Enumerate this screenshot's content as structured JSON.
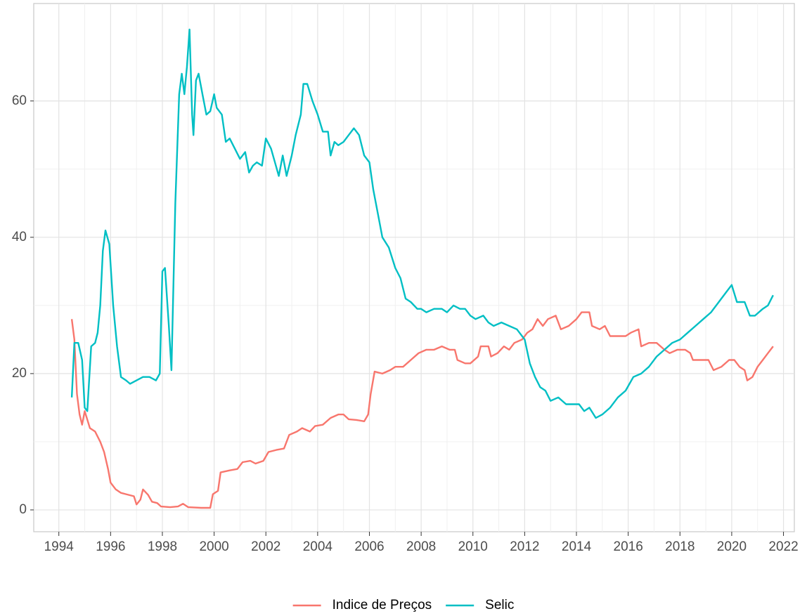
{
  "chart_data": {
    "type": "line",
    "xlim": [
      1993.03,
      2022.42
    ],
    "ylim": [
      -3.2,
      74.3
    ],
    "xticks": [
      1994,
      1996,
      1998,
      2000,
      2002,
      2004,
      2006,
      2008,
      2010,
      2012,
      2014,
      2016,
      2018,
      2020,
      2022
    ],
    "yticks": [
      0,
      20,
      40,
      60
    ],
    "grid": true,
    "legend": "bottom",
    "series": [
      {
        "name": "Indice de Preços",
        "color": "#F8766D",
        "x": [
          1994.5,
          1994.6,
          1994.7,
          1994.8,
          1994.9,
          1995.0,
          1995.2,
          1995.4,
          1995.6,
          1995.75,
          1995.9,
          1996.0,
          1996.2,
          1996.4,
          1996.6,
          1996.9,
          1997.0,
          1997.15,
          1997.25,
          1997.45,
          1997.6,
          1997.8,
          1997.95,
          1998.3,
          1998.6,
          1998.8,
          1999.0,
          1999.5,
          1999.85,
          1999.95,
          2000.15,
          2000.25,
          2000.6,
          2000.9,
          2001.1,
          2001.4,
          2001.6,
          2001.9,
          2002.1,
          2002.4,
          2002.7,
          2002.9,
          2003.2,
          2003.4,
          2003.7,
          2003.9,
          2004.2,
          2004.5,
          2004.8,
          2005.0,
          2005.2,
          2005.5,
          2005.8,
          2005.95,
          2006.05,
          2006.2,
          2006.5,
          2006.8,
          2007.0,
          2007.3,
          2007.6,
          2007.9,
          2008.2,
          2008.5,
          2008.8,
          2009.1,
          2009.3,
          2009.4,
          2009.7,
          2009.9,
          2010.2,
          2010.3,
          2010.6,
          2010.7,
          2010.95,
          2011.2,
          2011.4,
          2011.6,
          2011.9,
          2012.1,
          2012.3,
          2012.5,
          2012.7,
          2012.9,
          2013.2,
          2013.4,
          2013.7,
          2014.0,
          2014.2,
          2014.5,
          2014.6,
          2014.9,
          2015.1,
          2015.3,
          2015.6,
          2015.9,
          2016.1,
          2016.4,
          2016.5,
          2016.8,
          2017.1,
          2017.4,
          2017.6,
          2017.9,
          2018.2,
          2018.4,
          2018.5,
          2018.8,
          2019.1,
          2019.3,
          2019.6,
          2019.9,
          2020.1,
          2020.3,
          2020.5,
          2020.6,
          2020.8,
          2021.0,
          2021.2,
          2021.4,
          2021.6
        ],
        "values": [
          28,
          25,
          17,
          14,
          12.5,
          14.5,
          12,
          11.5,
          10,
          8.5,
          6,
          4,
          3,
          2.5,
          2.3,
          2,
          0.8,
          1.5,
          3,
          2.2,
          1.2,
          1,
          0.5,
          0.4,
          0.5,
          0.9,
          0.4,
          0.3,
          0.3,
          2.3,
          2.8,
          5.5,
          5.8,
          6,
          7,
          7.2,
          6.8,
          7.2,
          8.5,
          8.8,
          9,
          11,
          11.5,
          12,
          11.5,
          12.3,
          12.5,
          13.5,
          14,
          14,
          13.3,
          13.2,
          13,
          14,
          17,
          20.3,
          20,
          20.5,
          21,
          21,
          22,
          23,
          23.5,
          23.5,
          24,
          23.5,
          23.5,
          22,
          21.5,
          21.5,
          22.5,
          24,
          24,
          22.5,
          23,
          24,
          23.5,
          24.5,
          25,
          26,
          26.5,
          28,
          27,
          28,
          28.5,
          26.5,
          27,
          28,
          29,
          29,
          27,
          26.5,
          27,
          25.5,
          25.5,
          25.5,
          26,
          26.5,
          24,
          24.5,
          24.5,
          23.5,
          23,
          23.5,
          23.5,
          23,
          22,
          22,
          22,
          20.5,
          21,
          22,
          22,
          21,
          20.5,
          19,
          19.5,
          21,
          22,
          23,
          24
        ]
      },
      {
        "name": "Selic",
        "color": "#00BFC4",
        "x": [
          1994.5,
          1994.6,
          1994.75,
          1994.9,
          1995.0,
          1995.1,
          1995.25,
          1995.4,
          1995.5,
          1995.6,
          1995.7,
          1995.8,
          1995.95,
          1996.1,
          1996.25,
          1996.4,
          1996.6,
          1996.75,
          1997.0,
          1997.25,
          1997.5,
          1997.75,
          1997.9,
          1998.0,
          1998.1,
          1998.25,
          1998.35,
          1998.5,
          1998.65,
          1998.75,
          1998.85,
          1998.95,
          1999.05,
          1999.15,
          1999.2,
          1999.3,
          1999.4,
          1999.55,
          1999.7,
          1999.85,
          2000.0,
          2000.1,
          2000.3,
          2000.45,
          2000.6,
          2000.8,
          2001.0,
          2001.2,
          2001.35,
          2001.5,
          2001.65,
          2001.85,
          2002.0,
          2002.2,
          2002.35,
          2002.5,
          2002.65,
          2002.8,
          2003.0,
          2003.15,
          2003.35,
          2003.45,
          2003.6,
          2003.8,
          2004.0,
          2004.2,
          2004.4,
          2004.5,
          2004.65,
          2004.8,
          2005.0,
          2005.2,
          2005.4,
          2005.6,
          2005.8,
          2006.0,
          2006.15,
          2006.35,
          2006.5,
          2006.75,
          2007.0,
          2007.2,
          2007.4,
          2007.6,
          2007.85,
          2008.0,
          2008.2,
          2008.5,
          2008.8,
          2009.0,
          2009.25,
          2009.5,
          2009.7,
          2009.9,
          2010.1,
          2010.4,
          2010.6,
          2010.8,
          2011.1,
          2011.4,
          2011.7,
          2012.0,
          2012.2,
          2012.4,
          2012.6,
          2012.8,
          2013.0,
          2013.3,
          2013.6,
          2013.9,
          2014.1,
          2014.3,
          2014.5,
          2014.75,
          2015.0,
          2015.3,
          2015.6,
          2015.9,
          2016.2,
          2016.5,
          2016.8,
          2017.1,
          2017.4,
          2017.7,
          2018.0,
          2018.3,
          2018.6,
          2018.9,
          2019.2,
          2019.5,
          2019.8,
          2020.0,
          2020.2,
          2020.5,
          2020.7,
          2020.9,
          2021.2,
          2021.4,
          2021.6
        ],
        "values": [
          16.5,
          24.5,
          24.5,
          22,
          15,
          14.5,
          24,
          24.5,
          26,
          30,
          38,
          41,
          39,
          30,
          24,
          19.5,
          19,
          18.5,
          19,
          19.5,
          19.5,
          19,
          20,
          35,
          35.5,
          27,
          20.5,
          45,
          61,
          64,
          61,
          65,
          70.5,
          58,
          55,
          63,
          64,
          61,
          58,
          58.5,
          61,
          59,
          58,
          54,
          54.5,
          53,
          51.5,
          52.5,
          49.5,
          50.5,
          51,
          50.5,
          54.5,
          53,
          51,
          49,
          52,
          49,
          52,
          55,
          58,
          62.5,
          62.5,
          60,
          58,
          55.5,
          55.5,
          52,
          54,
          53.5,
          54,
          55,
          56,
          55,
          52,
          51,
          47,
          43,
          40,
          38.5,
          35.5,
          34,
          31,
          30.5,
          29.5,
          29.5,
          29,
          29.5,
          29.5,
          29,
          30,
          29.5,
          29.5,
          28.5,
          28,
          28.5,
          27.5,
          27,
          27.5,
          27,
          26.5,
          25,
          21.5,
          19.5,
          18,
          17.5,
          16,
          16.5,
          15.5,
          15.5,
          15.5,
          14.5,
          15,
          13.5,
          14,
          15,
          16.5,
          17.5,
          19.5,
          20,
          21,
          22.5,
          23.5,
          24.5,
          25,
          26,
          27,
          28,
          29,
          30.5,
          32,
          33,
          30.5,
          30.5,
          28.5,
          28.5,
          29.5,
          30,
          31.5
        ]
      }
    ]
  }
}
